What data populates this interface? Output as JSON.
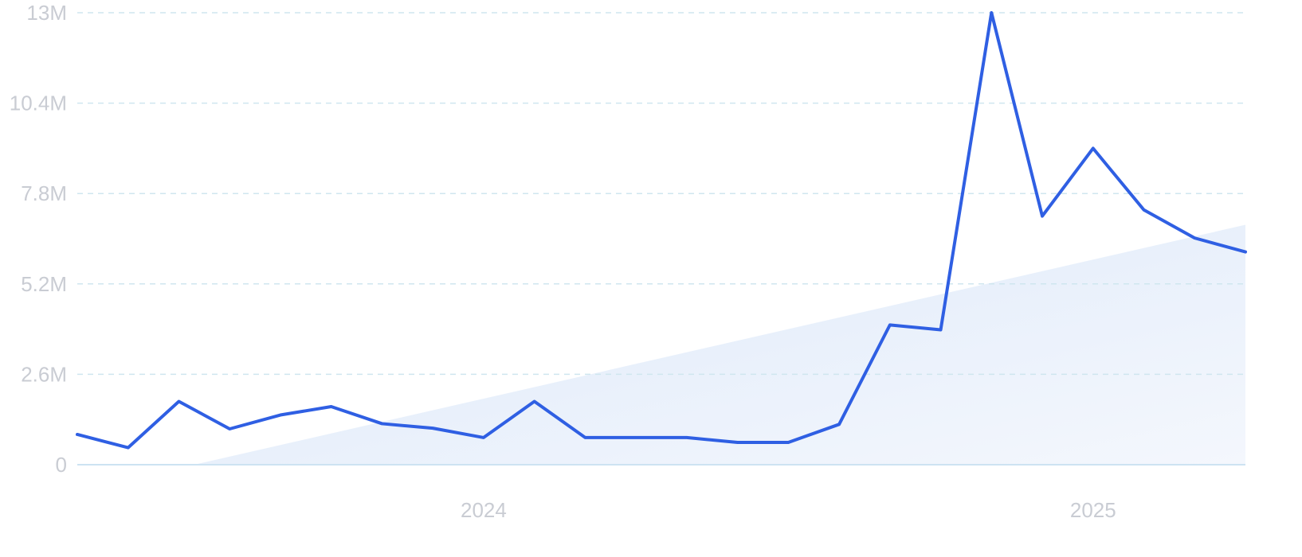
{
  "chart_data": {
    "type": "line",
    "title": "",
    "xlabel": "",
    "ylabel": "",
    "grid": true,
    "legend": "none",
    "ylim": [
      0,
      13000000
    ],
    "y_ticks": [
      {
        "value": 0,
        "label": "0"
      },
      {
        "value": 2600000,
        "label": "2.6M"
      },
      {
        "value": 5200000,
        "label": "5.2M"
      },
      {
        "value": 7800000,
        "label": "7.8M"
      },
      {
        "value": 10400000,
        "label": "10.4M"
      },
      {
        "value": 13000000,
        "label": "13M"
      }
    ],
    "x_ticks": [
      {
        "value": 8,
        "label": "2024"
      },
      {
        "value": 20,
        "label": "2025"
      }
    ],
    "xlim": [
      0,
      23
    ],
    "series": [
      {
        "color": "#2f5fe3",
        "x": [
          0,
          1,
          2,
          3,
          4,
          5,
          6,
          7,
          8,
          9,
          10,
          11,
          12,
          13,
          14,
          15,
          16,
          17,
          18,
          19,
          20,
          21,
          22,
          23
        ],
        "values": [
          870000,
          490000,
          1820000,
          1030000,
          1430000,
          1670000,
          1180000,
          1050000,
          780000,
          1820000,
          780000,
          780000,
          780000,
          640000,
          640000,
          1160000,
          4020000,
          3880000,
          13000000,
          7150000,
          9100000,
          7330000,
          6520000,
          6120000
        ]
      },
      {
        "type": "area",
        "role": "trend",
        "x": [
          2.3,
          23
        ],
        "values": [
          0,
          6900000
        ]
      }
    ],
    "colors": {
      "line": "#2f5fe3",
      "trend_fill_start": "#dde9f9",
      "trend_fill_end": "#f4f7fd",
      "grid": "#cfe6ef",
      "tick_text": "#c9ccd3"
    }
  }
}
